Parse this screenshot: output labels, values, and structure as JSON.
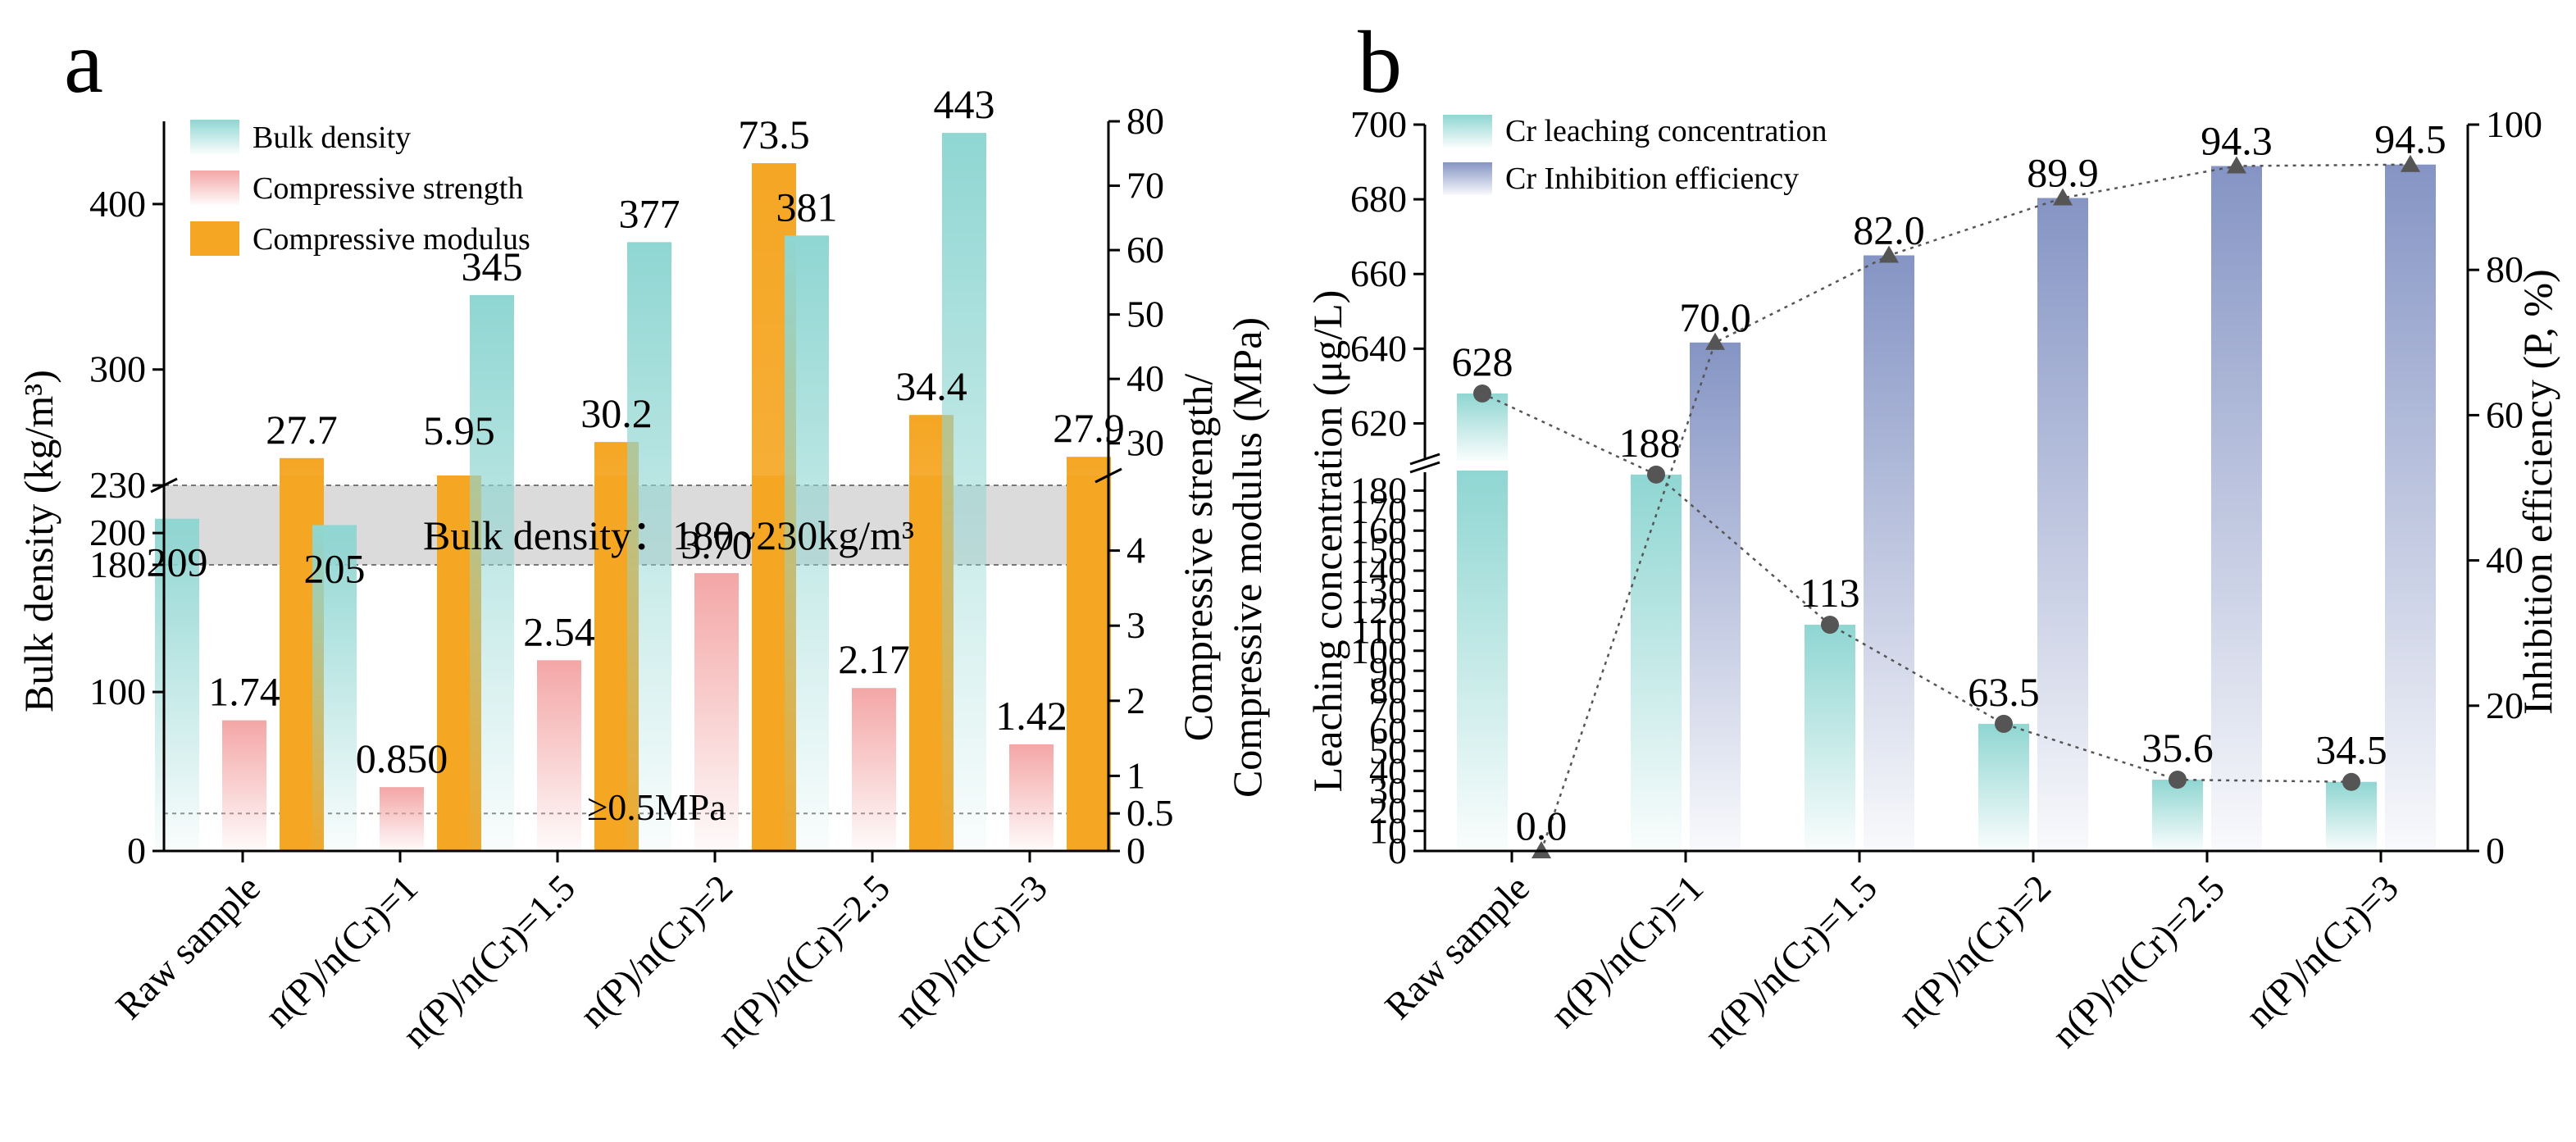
{
  "panel_a": {
    "letter": "a",
    "band_label": "Bulk density：180~230kg/m³",
    "threshold_label": "≥0.5MPa",
    "chart_data": {
      "type": "bar",
      "title": "",
      "categories": [
        "Raw sample",
        "n(P)/n(Cr)=1",
        "n(P)/n(Cr)=1.5",
        "n(P)/n(Cr)=2",
        "n(P)/n(Cr)=2.5",
        "n(P)/n(Cr)=3"
      ],
      "ylabel_left": "Bulk density (kg/m³)",
      "ylabel_right": [
        "Compressive strength/",
        "Compressive modulus (MPa)"
      ],
      "left_axis": {
        "segments": [
          {
            "range": [
              0,
              230
            ],
            "ticks": [
              0,
              100,
              180,
              200,
              230
            ]
          },
          {
            "range": [
              230,
              450
            ],
            "ticks": [
              300,
              400
            ]
          }
        ]
      },
      "right_axis": {
        "segments": [
          {
            "range": [
              0,
              5
            ],
            "ticks": [
              0,
              0.5,
              1,
              2,
              3,
              4
            ]
          },
          {
            "range": [
              25,
              80
            ],
            "ticks": [
              30,
              40,
              50,
              60,
              70,
              80
            ]
          }
        ]
      },
      "band": [
        180,
        230
      ],
      "threshold_MPa": 0.5,
      "series": [
        {
          "name": "Bulk density",
          "axis": "left",
          "color": "#8fd6d2",
          "values": [
            209,
            205,
            345,
            377,
            381,
            443
          ],
          "labels": [
            "209",
            "205",
            "345",
            "377",
            "381",
            "443"
          ]
        },
        {
          "name": "Compressive strength",
          "axis": "right",
          "color": "#f4a6a6",
          "values": [
            1.74,
            0.85,
            2.54,
            3.7,
            2.17,
            1.42
          ],
          "labels": [
            "1.74",
            "0.850",
            "2.54",
            "3.70",
            "2.17",
            "1.42"
          ]
        },
        {
          "name": "Compressive modulus",
          "axis": "right",
          "color": "#f5a623",
          "values": [
            27.7,
            5.95,
            30.2,
            73.5,
            34.4,
            27.9
          ],
          "labels": [
            "27.7",
            "5.95",
            "30.2",
            "73.5",
            "34.4",
            "27.9"
          ]
        }
      ]
    }
  },
  "panel_b": {
    "letter": "b",
    "chart_data": {
      "type": "bar",
      "title": "",
      "categories": [
        "Raw sample",
        "n(P)/n(Cr)=1",
        "n(P)/n(Cr)=1.5",
        "n(P)/n(Cr)=2",
        "n(P)/n(Cr)=2.5",
        "n(P)/n(Cr)=3"
      ],
      "ylabel_left": "Leaching concentration (μg/L)",
      "ylabel_right": "Inhibition efficiency (P, %)",
      "left_axis": {
        "segments": [
          {
            "range": [
              0,
              190
            ],
            "ticks": [
              0,
              10,
              20,
              30,
              40,
              50,
              60,
              70,
              80,
              90,
              100,
              110,
              120,
              130,
              140,
              150,
              160,
              170,
              180
            ]
          },
          {
            "range": [
              610,
              700
            ],
            "ticks": [
              620,
              640,
              660,
              680,
              700
            ]
          }
        ]
      },
      "right_axis": {
        "range": [
          0,
          100
        ],
        "ticks": [
          0,
          20,
          40,
          60,
          80,
          100
        ]
      },
      "series": [
        {
          "name": "Cr leaching concentration",
          "axis": "left",
          "color": "#8fd6d2",
          "values": [
            628,
            188,
            113,
            63.5,
            35.6,
            34.5
          ],
          "labels": [
            "628",
            "188",
            "113",
            "63.5",
            "35.6",
            "34.5"
          ]
        },
        {
          "name": "Cr Inhibition efficiency",
          "axis": "right",
          "color": "#8594c4",
          "values": [
            0.0,
            70.0,
            82.0,
            89.9,
            94.3,
            94.5
          ],
          "labels": [
            "0.0",
            "70.0",
            "82.0",
            "89.9",
            "94.3",
            "94.5"
          ]
        }
      ]
    }
  }
}
